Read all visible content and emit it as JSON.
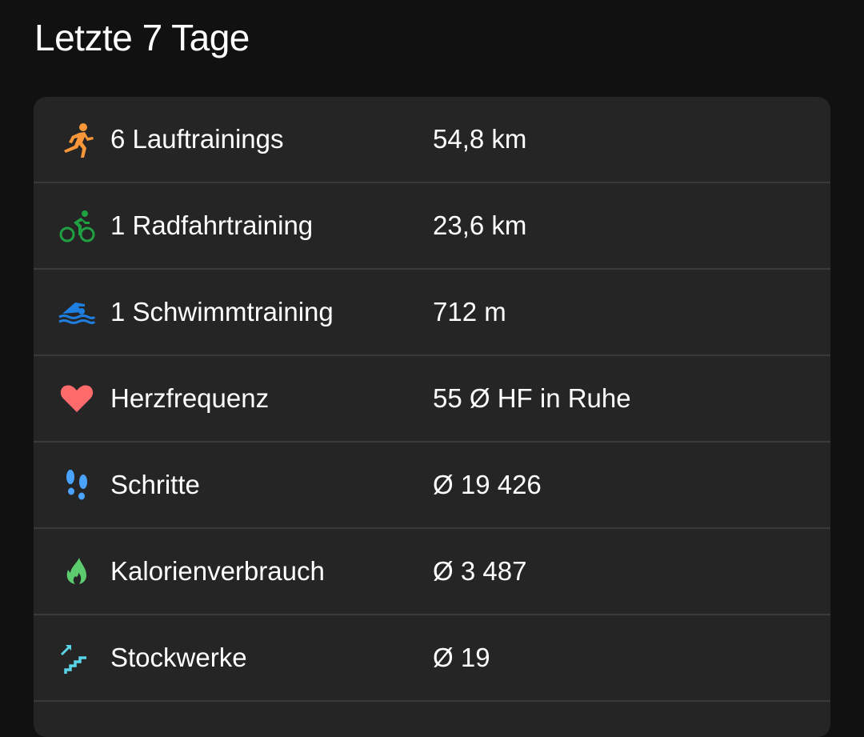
{
  "title": "Letzte 7 Tage",
  "rows": [
    {
      "icon": "running-icon",
      "color": "#f7973a",
      "label": "6 Lauftrainings",
      "value": "54,8 km"
    },
    {
      "icon": "cycling-icon",
      "color": "#1fa043",
      "label": "1 Radfahrtraining",
      "value": "23,6 km"
    },
    {
      "icon": "swimming-icon",
      "color": "#1e7fe0",
      "label": "1 Schwimmtraining",
      "value": "712 m"
    },
    {
      "icon": "heart-icon",
      "color": "#ff6b6b",
      "label": "Herzfrequenz",
      "value": "55 Ø HF in Ruhe"
    },
    {
      "icon": "footsteps-icon",
      "color": "#4aa3ff",
      "label": "Schritte",
      "value": "Ø 19 426"
    },
    {
      "icon": "flame-icon",
      "color": "#5ccc6e",
      "label": "Kalorienverbrauch",
      "value": "Ø 3 487"
    },
    {
      "icon": "stairs-icon",
      "color": "#5ad3e6",
      "label": "Stockwerke",
      "value": "Ø 19"
    }
  ]
}
